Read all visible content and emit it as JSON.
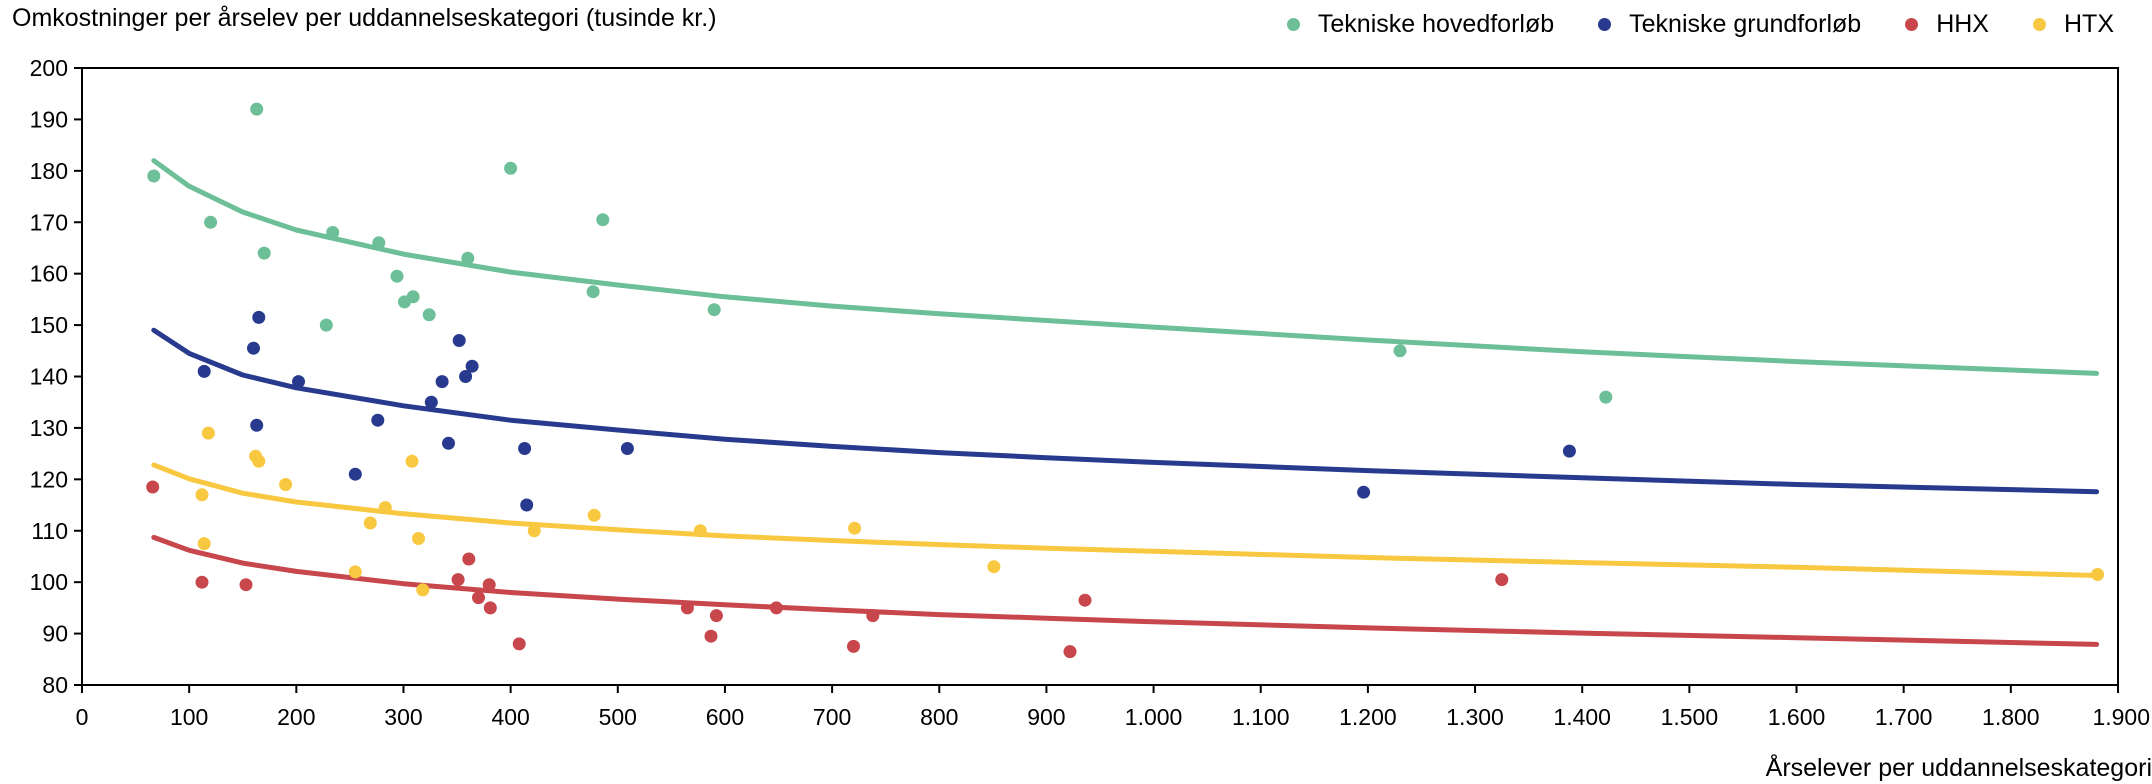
{
  "chart_data": {
    "type": "scatter",
    "ylabel": "Omkostninger per årselev per uddannelseskategori (tusinde kr.)",
    "xlabel": "Årselever per uddannelseskategori",
    "xlim": [
      0,
      1900
    ],
    "ylim": [
      80,
      200
    ],
    "x_ticks": [
      0,
      100,
      200,
      300,
      400,
      500,
      600,
      700,
      800,
      900,
      1000,
      1100,
      1200,
      1300,
      1400,
      1500,
      1600,
      1700,
      1800,
      1900
    ],
    "x_tick_labels": [
      "0",
      "100",
      "200",
      "300",
      "400",
      "500",
      "600",
      "700",
      "800",
      "900",
      "1.000",
      "1.100",
      "1.200",
      "1.300",
      "1.400",
      "1.500",
      "1.600",
      "1.700",
      "1.800",
      "1.900"
    ],
    "y_ticks": [
      80,
      90,
      100,
      110,
      120,
      130,
      140,
      150,
      160,
      170,
      180,
      190,
      200
    ],
    "grid": false,
    "legend_position": "top-right",
    "series": [
      {
        "name": "Tekniske hovedforløb",
        "color": "#6cbf97",
        "points": [
          [
            67,
            179
          ],
          [
            120,
            170
          ],
          [
            163,
            192
          ],
          [
            170,
            164
          ],
          [
            228,
            150
          ],
          [
            234,
            168
          ],
          [
            277,
            166
          ],
          [
            294,
            159.5
          ],
          [
            301,
            154.5
          ],
          [
            309,
            155.5
          ],
          [
            324,
            152
          ],
          [
            360,
            163
          ],
          [
            400,
            180.5
          ],
          [
            477,
            156.5
          ],
          [
            486,
            170.5
          ],
          [
            590,
            153
          ],
          [
            1230,
            145
          ],
          [
            1422,
            136
          ]
        ],
        "trend": [
          [
            67,
            182
          ],
          [
            100,
            177
          ],
          [
            150,
            172
          ],
          [
            200,
            168.5
          ],
          [
            300,
            163.8
          ],
          [
            400,
            160.3
          ],
          [
            500,
            157.8
          ],
          [
            600,
            155.5
          ],
          [
            700,
            153.7
          ],
          [
            800,
            152.2
          ],
          [
            900,
            150.9
          ],
          [
            1000,
            149.6
          ],
          [
            1200,
            147.1
          ],
          [
            1400,
            144.8
          ],
          [
            1600,
            142.9
          ],
          [
            1880,
            140.6
          ]
        ]
      },
      {
        "name": "Tekniske grundforløb",
        "color": "#283a8e",
        "points": [
          [
            114,
            141
          ],
          [
            160,
            145.5
          ],
          [
            163,
            130.5
          ],
          [
            165,
            151.5
          ],
          [
            202,
            139
          ],
          [
            255,
            121
          ],
          [
            276,
            131.5
          ],
          [
            326,
            135
          ],
          [
            336,
            139
          ],
          [
            342,
            127
          ],
          [
            352,
            147
          ],
          [
            358,
            140
          ],
          [
            364,
            142
          ],
          [
            413,
            126
          ],
          [
            415,
            115
          ],
          [
            509,
            126
          ],
          [
            1196,
            117.5
          ],
          [
            1388,
            125.5
          ]
        ],
        "trend": [
          [
            67,
            149
          ],
          [
            100,
            144.5
          ],
          [
            150,
            140.3
          ],
          [
            200,
            137.8
          ],
          [
            300,
            134.3
          ],
          [
            400,
            131.5
          ],
          [
            500,
            129.6
          ],
          [
            600,
            127.8
          ],
          [
            700,
            126.4
          ],
          [
            800,
            125.2
          ],
          [
            900,
            124.2
          ],
          [
            1000,
            123.3
          ],
          [
            1200,
            121.7
          ],
          [
            1400,
            120.3
          ],
          [
            1600,
            119
          ],
          [
            1880,
            117.6
          ]
        ]
      },
      {
        "name": "HHX",
        "color": "#c8474c",
        "points": [
          [
            66,
            118.5
          ],
          [
            112,
            100
          ],
          [
            153,
            99.5
          ],
          [
            351,
            100.5
          ],
          [
            361,
            104.5
          ],
          [
            370,
            97
          ],
          [
            380,
            99.5
          ],
          [
            381,
            95
          ],
          [
            408,
            88
          ],
          [
            565,
            95
          ],
          [
            587,
            89.5
          ],
          [
            592,
            93.5
          ],
          [
            648,
            95
          ],
          [
            720,
            87.5
          ],
          [
            738,
            93.5
          ],
          [
            922,
            86.5
          ],
          [
            936,
            96.5
          ],
          [
            1325,
            100.5
          ]
        ],
        "trend": [
          [
            67,
            108.7
          ],
          [
            100,
            106.2
          ],
          [
            150,
            103.7
          ],
          [
            200,
            102.1
          ],
          [
            300,
            99.7
          ],
          [
            400,
            98
          ],
          [
            500,
            96.7
          ],
          [
            600,
            95.6
          ],
          [
            700,
            94.6
          ],
          [
            800,
            93.7
          ],
          [
            900,
            93
          ],
          [
            1000,
            92.3
          ],
          [
            1200,
            91.1
          ],
          [
            1400,
            90.1
          ],
          [
            1600,
            89.2
          ],
          [
            1880,
            87.9
          ]
        ]
      },
      {
        "name": "HTX",
        "color": "#f8c840",
        "points": [
          [
            112,
            117
          ],
          [
            114,
            107.5
          ],
          [
            118,
            129
          ],
          [
            162,
            124.5
          ],
          [
            165,
            123.5
          ],
          [
            190,
            119
          ],
          [
            255,
            102
          ],
          [
            269,
            111.5
          ],
          [
            283,
            114.5
          ],
          [
            308,
            123.5
          ],
          [
            314,
            108.5
          ],
          [
            318,
            98.5
          ],
          [
            422,
            110
          ],
          [
            478,
            113
          ],
          [
            577,
            110
          ],
          [
            721,
            110.5
          ],
          [
            851,
            103
          ],
          [
            1881,
            101.5
          ]
        ],
        "trend": [
          [
            67,
            122.8
          ],
          [
            100,
            120.1
          ],
          [
            150,
            117.3
          ],
          [
            200,
            115.6
          ],
          [
            300,
            113.3
          ],
          [
            400,
            111.5
          ],
          [
            500,
            110.2
          ],
          [
            600,
            109
          ],
          [
            700,
            108.1
          ],
          [
            800,
            107.3
          ],
          [
            900,
            106.6
          ],
          [
            1000,
            106
          ],
          [
            1200,
            104.8
          ],
          [
            1400,
            103.8
          ],
          [
            1600,
            102.9
          ],
          [
            1880,
            101.3
          ]
        ]
      }
    ]
  }
}
